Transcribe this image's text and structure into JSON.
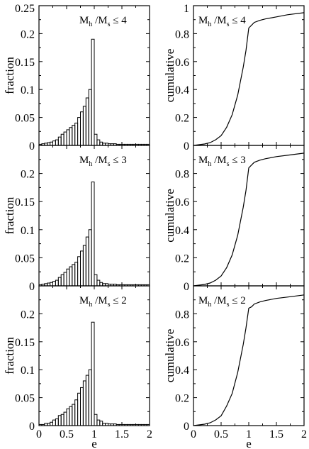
{
  "chart_data": [
    {
      "type": "bar",
      "panel": "left-top",
      "annotation": {
        "m1": "M",
        "s1": "h",
        "mid": " /M",
        "s2": "s",
        "tail": " ≤ 4"
      },
      "ylabel": "fraction",
      "xlabel": "",
      "xlim": [
        0,
        2
      ],
      "ylim": [
        0,
        0.25
      ],
      "yticks": [
        "0",
        "0.05",
        "0.1",
        "0.15",
        "0.2",
        "0.25"
      ],
      "xticks": [
        "0",
        "0.5",
        "1",
        "1.5",
        "2"
      ],
      "bin_width": 0.05,
      "values": [
        0.002,
        0.003,
        0.004,
        0.005,
        0.006,
        0.008,
        0.01,
        0.015,
        0.02,
        0.024,
        0.028,
        0.032,
        0.036,
        0.04,
        0.05,
        0.06,
        0.07,
        0.085,
        0.1,
        0.19,
        0.02,
        0.01,
        0.006,
        0.004,
        0.004,
        0.003,
        0.003,
        0.003,
        0.002,
        0.002,
        0.002,
        0.002,
        0.002,
        0.002,
        0.002,
        0.002,
        0.002,
        0.002,
        0.002,
        0.002
      ]
    },
    {
      "type": "line",
      "panel": "right-top",
      "annotation": {
        "m1": "M",
        "s1": "h",
        "mid": " /M",
        "s2": "s",
        "tail": " ≤ 4"
      },
      "ylabel": "cumulative",
      "xlabel": "",
      "xlim": [
        0,
        2
      ],
      "ylim": [
        0,
        1
      ],
      "yticks": [
        "0",
        "0.2",
        "0.4",
        "0.6",
        "0.8",
        "1"
      ],
      "xticks": [
        "0",
        "0.5",
        "1",
        "1.5",
        "2"
      ],
      "x": [
        0,
        0.2,
        0.3,
        0.4,
        0.5,
        0.6,
        0.7,
        0.8,
        0.9,
        0.95,
        1.0,
        1.05,
        1.1,
        1.2,
        1.3,
        1.5,
        1.7,
        2.0
      ],
      "y": [
        0,
        0.01,
        0.02,
        0.04,
        0.07,
        0.13,
        0.22,
        0.36,
        0.56,
        0.68,
        0.84,
        0.86,
        0.88,
        0.895,
        0.905,
        0.92,
        0.935,
        0.95
      ]
    },
    {
      "type": "bar",
      "panel": "left-middle",
      "annotation": {
        "m1": "M",
        "s1": "h",
        "mid": " /M",
        "s2": "s",
        "tail": " ≤ 3"
      },
      "ylabel": "fraction",
      "xlabel": "",
      "xlim": [
        0,
        2
      ],
      "ylim": [
        0,
        0.25
      ],
      "yticks": [
        "0",
        "0.05",
        "0.1",
        "0.15",
        "0.2"
      ],
      "xticks": [
        "0",
        "0.5",
        "1",
        "1.5",
        "2"
      ],
      "bin_width": 0.05,
      "values": [
        0.002,
        0.003,
        0.004,
        0.005,
        0.006,
        0.008,
        0.01,
        0.015,
        0.02,
        0.024,
        0.03,
        0.034,
        0.038,
        0.042,
        0.052,
        0.062,
        0.072,
        0.087,
        0.1,
        0.185,
        0.02,
        0.01,
        0.006,
        0.004,
        0.004,
        0.003,
        0.003,
        0.003,
        0.002,
        0.002,
        0.002,
        0.002,
        0.002,
        0.002,
        0.002,
        0.002,
        0.002,
        0.002,
        0.002,
        0.002
      ]
    },
    {
      "type": "line",
      "panel": "right-middle",
      "annotation": {
        "m1": "M",
        "s1": "h",
        "mid": " /M",
        "s2": "s",
        "tail": " ≤ 3"
      },
      "ylabel": "cumulative",
      "xlabel": "",
      "xlim": [
        0,
        2
      ],
      "ylim": [
        0,
        1
      ],
      "yticks": [
        "0",
        "0.2",
        "0.4",
        "0.6",
        "0.8"
      ],
      "xticks": [
        "0",
        "0.5",
        "1",
        "1.5",
        "2"
      ],
      "x": [
        0,
        0.2,
        0.3,
        0.4,
        0.5,
        0.6,
        0.7,
        0.8,
        0.9,
        0.95,
        1.0,
        1.05,
        1.1,
        1.2,
        1.3,
        1.5,
        1.7,
        2.0
      ],
      "y": [
        0,
        0.01,
        0.02,
        0.04,
        0.07,
        0.13,
        0.22,
        0.36,
        0.56,
        0.68,
        0.84,
        0.86,
        0.88,
        0.895,
        0.905,
        0.92,
        0.93,
        0.945
      ]
    },
    {
      "type": "bar",
      "panel": "left-bottom",
      "annotation": {
        "m1": "M",
        "s1": "h",
        "mid": " /M",
        "s2": "s",
        "tail": " ≤ 2"
      },
      "ylabel": "fraction",
      "xlabel": "e",
      "xlim": [
        0,
        2
      ],
      "ylim": [
        0,
        0.25
      ],
      "yticks": [
        "0",
        "0.05",
        "0.1",
        "0.15",
        "0.2"
      ],
      "xticks": [
        "0",
        "0.5",
        "1",
        "1.5",
        "2"
      ],
      "bin_width": 0.05,
      "values": [
        0.002,
        0.002,
        0.004,
        0.004,
        0.006,
        0.01,
        0.012,
        0.018,
        0.02,
        0.024,
        0.03,
        0.034,
        0.038,
        0.046,
        0.058,
        0.068,
        0.08,
        0.09,
        0.1,
        0.185,
        0.02,
        0.01,
        0.008,
        0.004,
        0.004,
        0.003,
        0.003,
        0.003,
        0.002,
        0.002,
        0.002,
        0.002,
        0.002,
        0.002,
        0.002,
        0.002,
        0.002,
        0.002,
        0.002,
        0.002
      ]
    },
    {
      "type": "line",
      "panel": "right-bottom",
      "annotation": {
        "m1": "M",
        "s1": "h",
        "mid": " /M",
        "s2": "s",
        "tail": " ≤ 2"
      },
      "ylabel": "cumulative",
      "xlabel": "e",
      "xlim": [
        0,
        2
      ],
      "ylim": [
        0,
        1
      ],
      "yticks": [
        "0",
        "0.2",
        "0.4",
        "0.6",
        "0.8"
      ],
      "xticks": [
        "0",
        "0.5",
        "1",
        "1.5",
        "2"
      ],
      "x": [
        0,
        0.2,
        0.3,
        0.4,
        0.5,
        0.6,
        0.7,
        0.8,
        0.9,
        0.95,
        1.0,
        1.05,
        1.1,
        1.2,
        1.3,
        1.5,
        1.7,
        2.0
      ],
      "y": [
        0,
        0.01,
        0.02,
        0.04,
        0.07,
        0.14,
        0.23,
        0.38,
        0.58,
        0.7,
        0.84,
        0.85,
        0.87,
        0.885,
        0.895,
        0.91,
        0.92,
        0.935
      ]
    }
  ]
}
